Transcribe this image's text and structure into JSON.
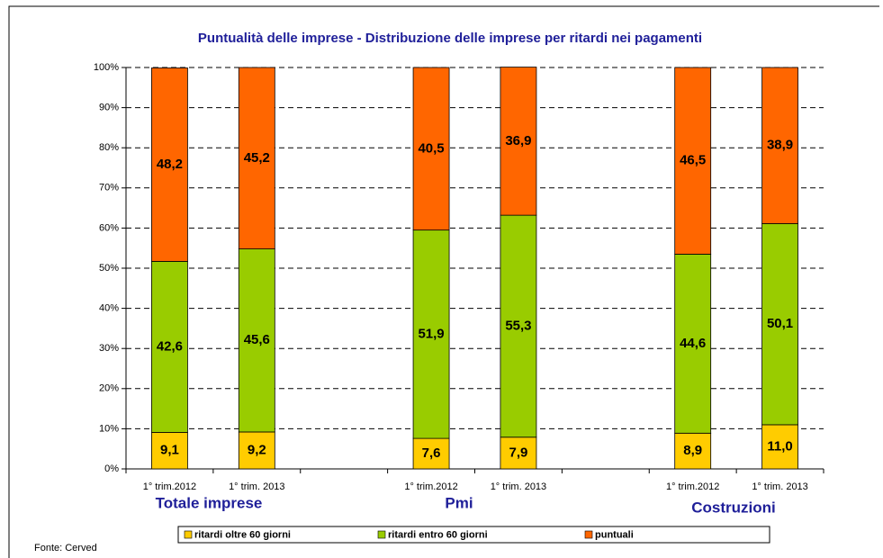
{
  "chart_data": {
    "type": "stacked_bar",
    "title": "Puntualità delle imprese  - Distribuzione delle imprese per ritardi nei pagamenti",
    "categories": [
      "1° trim.2012",
      "1° trim. 2013",
      null,
      "1° trim.2012",
      "1° trim. 2013",
      null,
      "1° trim.2012",
      "1° trim. 2013"
    ],
    "groups": [
      "Totale imprese",
      "Pmi",
      "Costruzioni"
    ],
    "series": [
      {
        "name": "ritardi oltre 60 giorni",
        "color": "#ffcc00",
        "values": [
          9.1,
          9.2,
          null,
          7.6,
          7.9,
          null,
          8.9,
          11.0
        ],
        "value_labels": [
          "9,1",
          "9,2",
          null,
          "7,6",
          "7,9",
          null,
          "8,9",
          "11,0"
        ]
      },
      {
        "name": "ritardi entro 60 giorni",
        "color": "#99cc00",
        "values": [
          42.6,
          45.6,
          null,
          51.9,
          55.3,
          null,
          44.6,
          50.1
        ],
        "value_labels": [
          "42,6",
          "45,6",
          null,
          "51,9",
          "55,3",
          null,
          "44,6",
          "50,1"
        ]
      },
      {
        "name": "puntuali",
        "color": "#ff6600",
        "values": [
          48.2,
          45.2,
          null,
          40.5,
          36.9,
          null,
          46.5,
          38.9
        ],
        "value_labels": [
          "48,2",
          "45,2",
          null,
          "40,5",
          "36,9",
          null,
          "46,5",
          "38,9"
        ]
      }
    ],
    "ylim": [
      0,
      100
    ],
    "yticks": [
      {
        "value": 0,
        "label": "0%"
      },
      {
        "value": 10,
        "label": "10%"
      },
      {
        "value": 20,
        "label": "20%"
      },
      {
        "value": 30,
        "label": "30%"
      },
      {
        "value": 40,
        "label": "40%"
      },
      {
        "value": 50,
        "label": "50%"
      },
      {
        "value": 60,
        "label": "60%"
      },
      {
        "value": 70,
        "label": "70%"
      },
      {
        "value": 80,
        "label": "80%"
      },
      {
        "value": 90,
        "label": "90%"
      },
      {
        "value": 100,
        "label": "100%"
      }
    ],
    "grid": true,
    "source": "Fonte: Cerved"
  }
}
